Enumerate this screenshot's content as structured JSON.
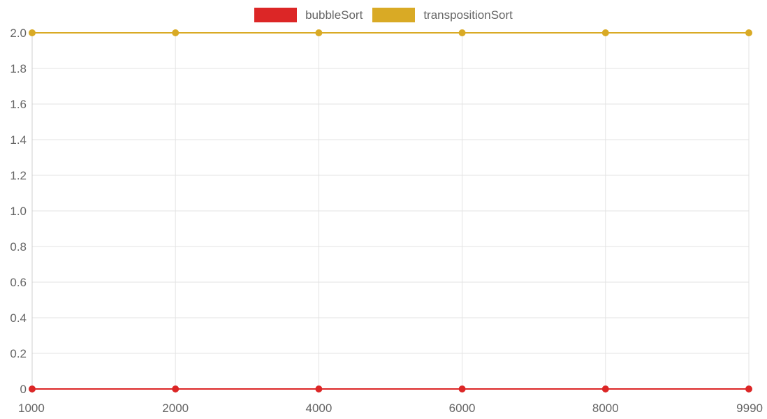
{
  "chart_data": {
    "type": "line",
    "categories": [
      "1000",
      "2000",
      "4000",
      "6000",
      "8000",
      "9990"
    ],
    "series": [
      {
        "name": "bubbleSort",
        "color": "#dc2626",
        "values": [
          0,
          0,
          0,
          0,
          0,
          0
        ]
      },
      {
        "name": "transpositionSort",
        "color": "#d9aa25",
        "values": [
          2,
          2,
          2,
          2,
          2,
          2
        ]
      }
    ],
    "y_ticks": [
      "0",
      "0.2",
      "0.4",
      "0.6",
      "0.8",
      "1.0",
      "1.2",
      "1.4",
      "1.6",
      "1.8",
      "2.0"
    ],
    "ylim": [
      0,
      2
    ],
    "grid": true,
    "legend_position": "top-center"
  }
}
